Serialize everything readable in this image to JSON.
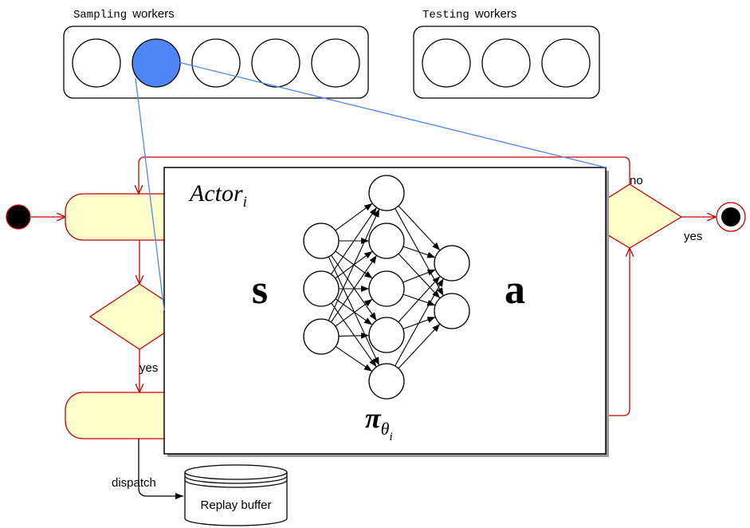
{
  "sampling_group": {
    "title_mono": "Sampling",
    "title_sans": "workers",
    "worker_count": 5,
    "highlighted_index": 1,
    "highlight_color": "#4f86f7"
  },
  "testing_group": {
    "title_mono": "Testing",
    "title_sans": "workers",
    "worker_count": 3
  },
  "actor_panel": {
    "title_base": "Actor",
    "title_sub": "i",
    "input_symbol": "s",
    "output_symbol": "a",
    "policy_base": "π",
    "policy_sub": "θ",
    "policy_subsub": "i",
    "network_layers": [
      3,
      5,
      2
    ]
  },
  "flow": {
    "no_label": "no",
    "yes_label_right": "yes",
    "yes_label_left": "yes",
    "dispatch_label": "dispatch",
    "replay_buffer_label": "Replay buffer"
  },
  "colors": {
    "flow_red": "#cc0000",
    "node_fill": "#ffffcc",
    "link_blue": "#4f86f7",
    "panel_shadow": "#999999"
  }
}
